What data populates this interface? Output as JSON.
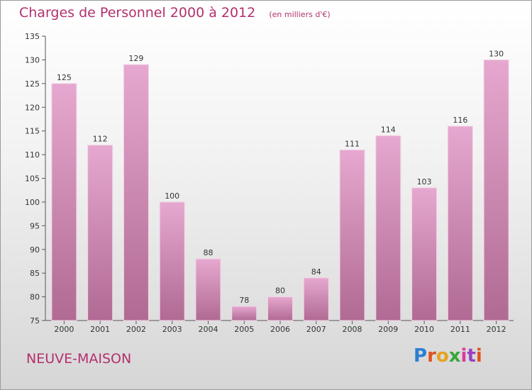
{
  "header": {
    "title": "Charges de Personnel 2000 à 2012",
    "subtitle": "(en milliers d'€)"
  },
  "footer": {
    "commune": "NEUVE-MAISON",
    "logo": "Proxiti"
  },
  "colors": {
    "accent": "#b3306e",
    "bar_top": "#e6a8d0",
    "bar_bottom": "#b06a93"
  },
  "chart_data": {
    "type": "bar",
    "categories": [
      "2000",
      "2001",
      "2002",
      "2003",
      "2004",
      "2005",
      "2006",
      "2007",
      "2008",
      "2009",
      "2010",
      "2011",
      "2012"
    ],
    "values": [
      125,
      112,
      129,
      100,
      88,
      78,
      80,
      84,
      111,
      114,
      103,
      116,
      130
    ],
    "title": "Charges de Personnel 2000 à 2012",
    "ylim": [
      75,
      135
    ],
    "yticks": [
      75,
      80,
      85,
      90,
      95,
      100,
      105,
      110,
      115,
      120,
      125,
      130,
      135
    ],
    "grid": false,
    "legend": "none"
  }
}
